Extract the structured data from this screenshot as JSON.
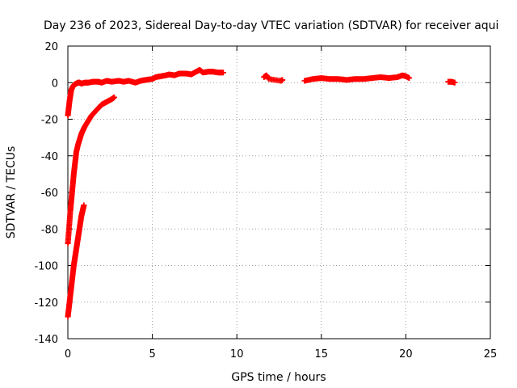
{
  "chart_data": {
    "type": "scatter",
    "title": "Day 236 of 2023, Sidereal Day-to-day VTEC variation (SDTVAR) for receiver aqui",
    "xlabel": "GPS time / hours",
    "ylabel": "SDTVAR / TECUs",
    "xlim": [
      0,
      25
    ],
    "ylim": [
      -140,
      20
    ],
    "xticks": [
      0,
      5,
      10,
      15,
      20,
      25
    ],
    "yticks": [
      -140,
      -120,
      -100,
      -80,
      -60,
      -40,
      -20,
      0,
      20
    ],
    "grid": true,
    "marker": "plus",
    "colors": {
      "series": "#ff0000",
      "grid": "#a0a0a0",
      "axis": "#000000"
    },
    "series": [
      {
        "x": [
          0.0,
          0.05,
          0.1,
          0.15,
          0.2,
          0.3,
          0.4,
          0.5,
          0.6,
          0.7,
          0.8,
          1.0,
          1.2,
          1.5,
          1.8,
          2.0,
          2.3,
          2.6,
          3.0,
          3.3,
          3.6,
          4.0,
          4.3,
          4.6,
          5.0,
          5.2,
          5.5,
          5.8,
          6.0,
          6.3,
          6.6,
          7.0,
          7.3,
          7.6,
          7.8,
          8.0,
          8.3,
          8.6,
          8.9,
          9.2,
          11.6,
          11.75,
          11.9,
          12.6,
          12.7,
          14.0,
          14.5,
          15.0,
          15.5,
          16.0,
          16.5,
          17.0,
          17.5,
          18.0,
          18.5,
          19.0,
          19.5,
          19.8,
          20.0,
          20.2,
          22.5,
          22.7,
          22.9
        ],
        "y": [
          -18,
          -14,
          -10,
          -7,
          -4,
          -2,
          -1,
          -0.5,
          0,
          0,
          -0.5,
          0,
          0,
          0.5,
          0.5,
          0,
          1,
          0.5,
          1,
          0.5,
          1,
          0,
          1,
          1.5,
          2,
          3,
          3.5,
          4,
          4.5,
          4,
          5,
          5,
          4.5,
          6,
          7,
          5.5,
          6,
          6,
          5.5,
          5.5,
          3,
          4,
          2,
          1,
          1.5,
          1,
          2,
          2.5,
          2,
          2,
          1.5,
          2,
          2,
          2.5,
          3,
          2.5,
          3,
          4,
          3.5,
          2.5,
          0.5,
          0.5,
          0
        ]
      },
      {
        "x": [
          0.0,
          0.05,
          0.1,
          0.15,
          0.2,
          0.25,
          0.3,
          0.35,
          0.4,
          0.45,
          0.5,
          0.6,
          0.7,
          0.8,
          0.9,
          1.0,
          1.2,
          1.4,
          1.6,
          1.8,
          2.0,
          2.2,
          2.4,
          2.6,
          2.75
        ],
        "y": [
          -88,
          -82,
          -76,
          -70,
          -65,
          -60,
          -55,
          -50,
          -46,
          -42,
          -38,
          -34,
          -31,
          -28,
          -26,
          -24,
          -21,
          -18,
          -16,
          -14,
          -12,
          -11,
          -10,
          -9,
          -8
        ]
      },
      {
        "x": [
          0.0,
          0.05,
          0.1,
          0.15,
          0.2,
          0.25,
          0.3,
          0.35,
          0.4,
          0.45,
          0.5,
          0.55,
          0.6,
          0.65,
          0.7,
          0.75,
          0.8,
          0.85,
          0.9,
          0.95
        ],
        "y": [
          -128,
          -124,
          -120,
          -116,
          -112,
          -108,
          -104,
          -100,
          -97,
          -94,
          -91,
          -88,
          -85,
          -82,
          -79,
          -76,
          -73,
          -71,
          -69,
          -67
        ]
      }
    ]
  }
}
